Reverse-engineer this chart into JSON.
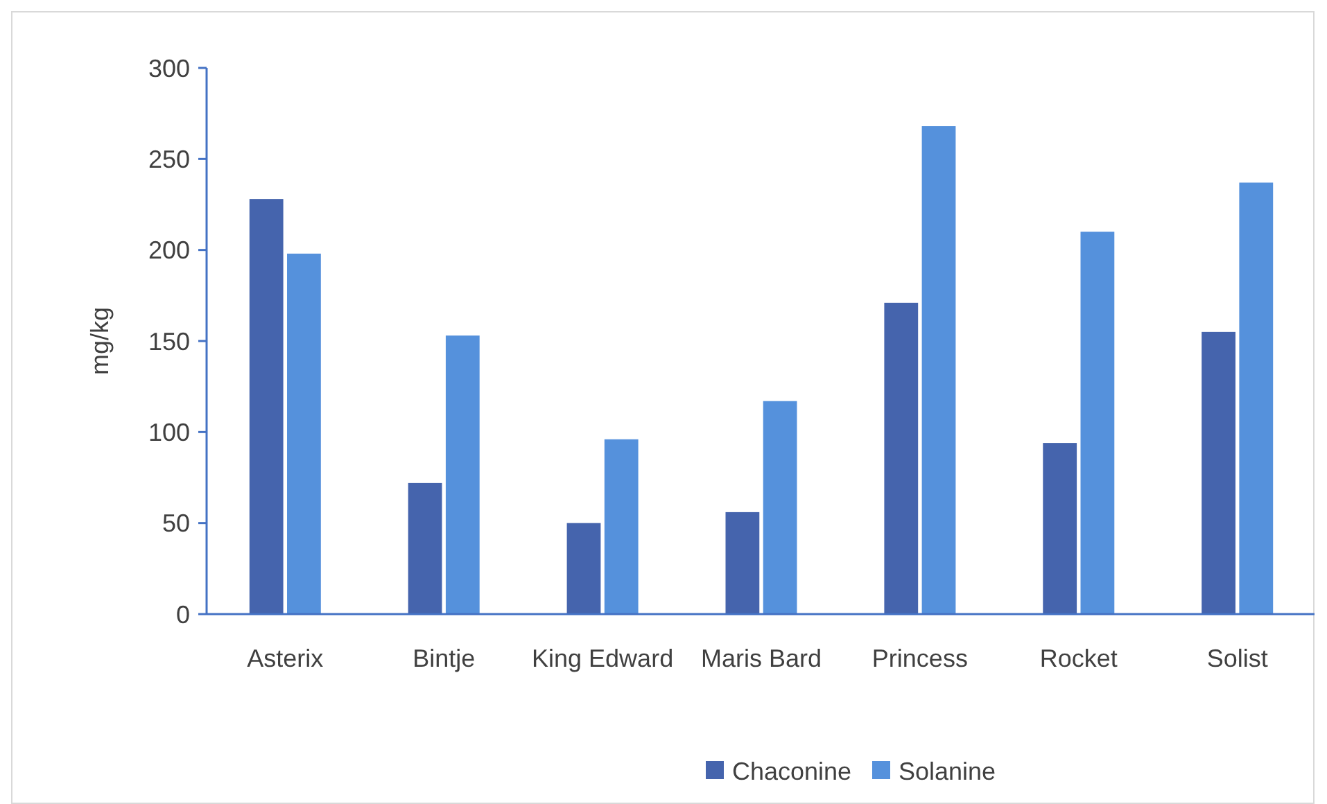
{
  "chart_data": {
    "type": "bar",
    "ylabel": "mg/kg",
    "categories": [
      "Asterix",
      "Bintje",
      "King Edward",
      "Maris Bard",
      "Princess",
      "Rocket",
      "Solist"
    ],
    "series": [
      {
        "name": "Chaconine",
        "color": "#4564ad",
        "values": [
          228,
          72,
          50,
          56,
          171,
          94,
          155
        ]
      },
      {
        "name": "Solanine",
        "color": "#5591dc",
        "values": [
          198,
          153,
          96,
          117,
          268,
          210,
          237
        ]
      }
    ],
    "ylim": [
      0,
      300
    ],
    "yticks": [
      0,
      50,
      100,
      150,
      200,
      250,
      300
    ],
    "grid": false,
    "legend": "bottom"
  }
}
